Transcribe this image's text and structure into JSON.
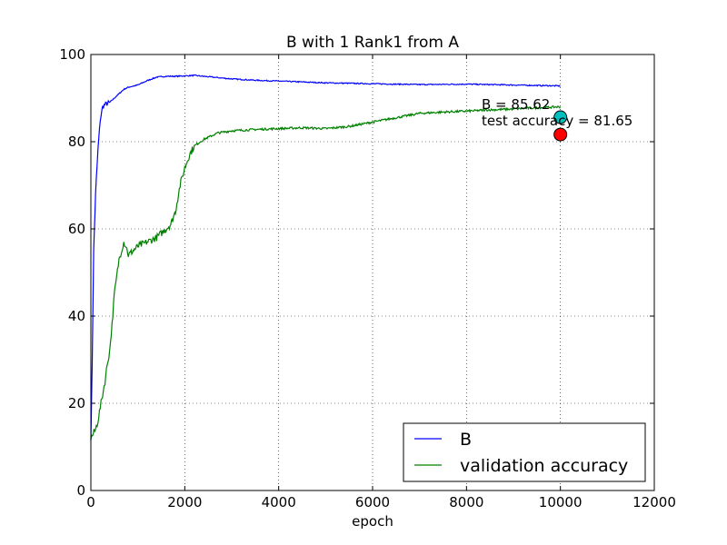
{
  "chart_data": {
    "type": "line",
    "title": "B with 1 Rank1 from A",
    "xlabel": "epoch",
    "ylabel": "",
    "xlim": [
      0,
      12000
    ],
    "ylim": [
      0,
      100
    ],
    "xticks": [
      0,
      2000,
      4000,
      6000,
      8000,
      10000,
      12000
    ],
    "yticks": [
      0,
      20,
      40,
      60,
      80,
      100
    ],
    "grid": true,
    "legend_position": "bottom-right",
    "series": [
      {
        "name": "B",
        "color": "#0000ff",
        "x": [
          0,
          30,
          60,
          100,
          150,
          200,
          250,
          300,
          400,
          500,
          600,
          700,
          800,
          1000,
          1200,
          1400,
          1600,
          1800,
          2000,
          2200,
          2400,
          2600,
          2800,
          3000,
          3500,
          4000,
          5000,
          6000,
          7000,
          8000,
          9000,
          10000
        ],
        "y": [
          12,
          30,
          55,
          68,
          78,
          85,
          88,
          88.5,
          89,
          90,
          91,
          92,
          92.5,
          93,
          94,
          94.8,
          95,
          95,
          95.1,
          95.2,
          95,
          94.8,
          94.6,
          94.4,
          94.1,
          93.9,
          93.5,
          93.3,
          93.1,
          93.2,
          93,
          92.8
        ]
      },
      {
        "name": "validation accuracy",
        "color": "#008000",
        "x": [
          0,
          50,
          100,
          150,
          200,
          250,
          300,
          350,
          400,
          450,
          500,
          550,
          600,
          650,
          700,
          750,
          800,
          900,
          1000,
          1200,
          1400,
          1600,
          1700,
          1800,
          1850,
          1900,
          1950,
          2000,
          2100,
          2200,
          2400,
          2600,
          2700,
          3000,
          3500,
          4000,
          4500,
          5000,
          5500,
          6000,
          6500,
          7000,
          7500,
          8000,
          8500,
          9000,
          9500,
          10000
        ],
        "y": [
          12,
          13,
          14,
          16,
          19,
          22,
          25,
          29,
          32,
          38,
          45,
          49,
          53,
          55,
          57,
          56,
          54,
          55,
          56,
          57,
          58,
          60,
          61,
          64,
          67,
          70,
          72,
          74,
          77,
          79,
          80.5,
          81.5,
          82,
          82.5,
          82.8,
          83,
          83.2,
          83,
          83.5,
          84.5,
          85.5,
          86.5,
          86.8,
          87,
          87.3,
          87.5,
          87.8,
          88
        ]
      }
    ],
    "markers": [
      {
        "x": 10000,
        "y": 85.62,
        "color": "#00bfbf"
      },
      {
        "x": 10000,
        "y": 81.65,
        "color": "#ff0000"
      }
    ],
    "annotations": [
      {
        "text": "B = 85.62",
        "x": 9000,
        "y": 85.62
      },
      {
        "text": "test accuracy = 81.65",
        "x": 9000,
        "y": 83.3
      }
    ]
  }
}
